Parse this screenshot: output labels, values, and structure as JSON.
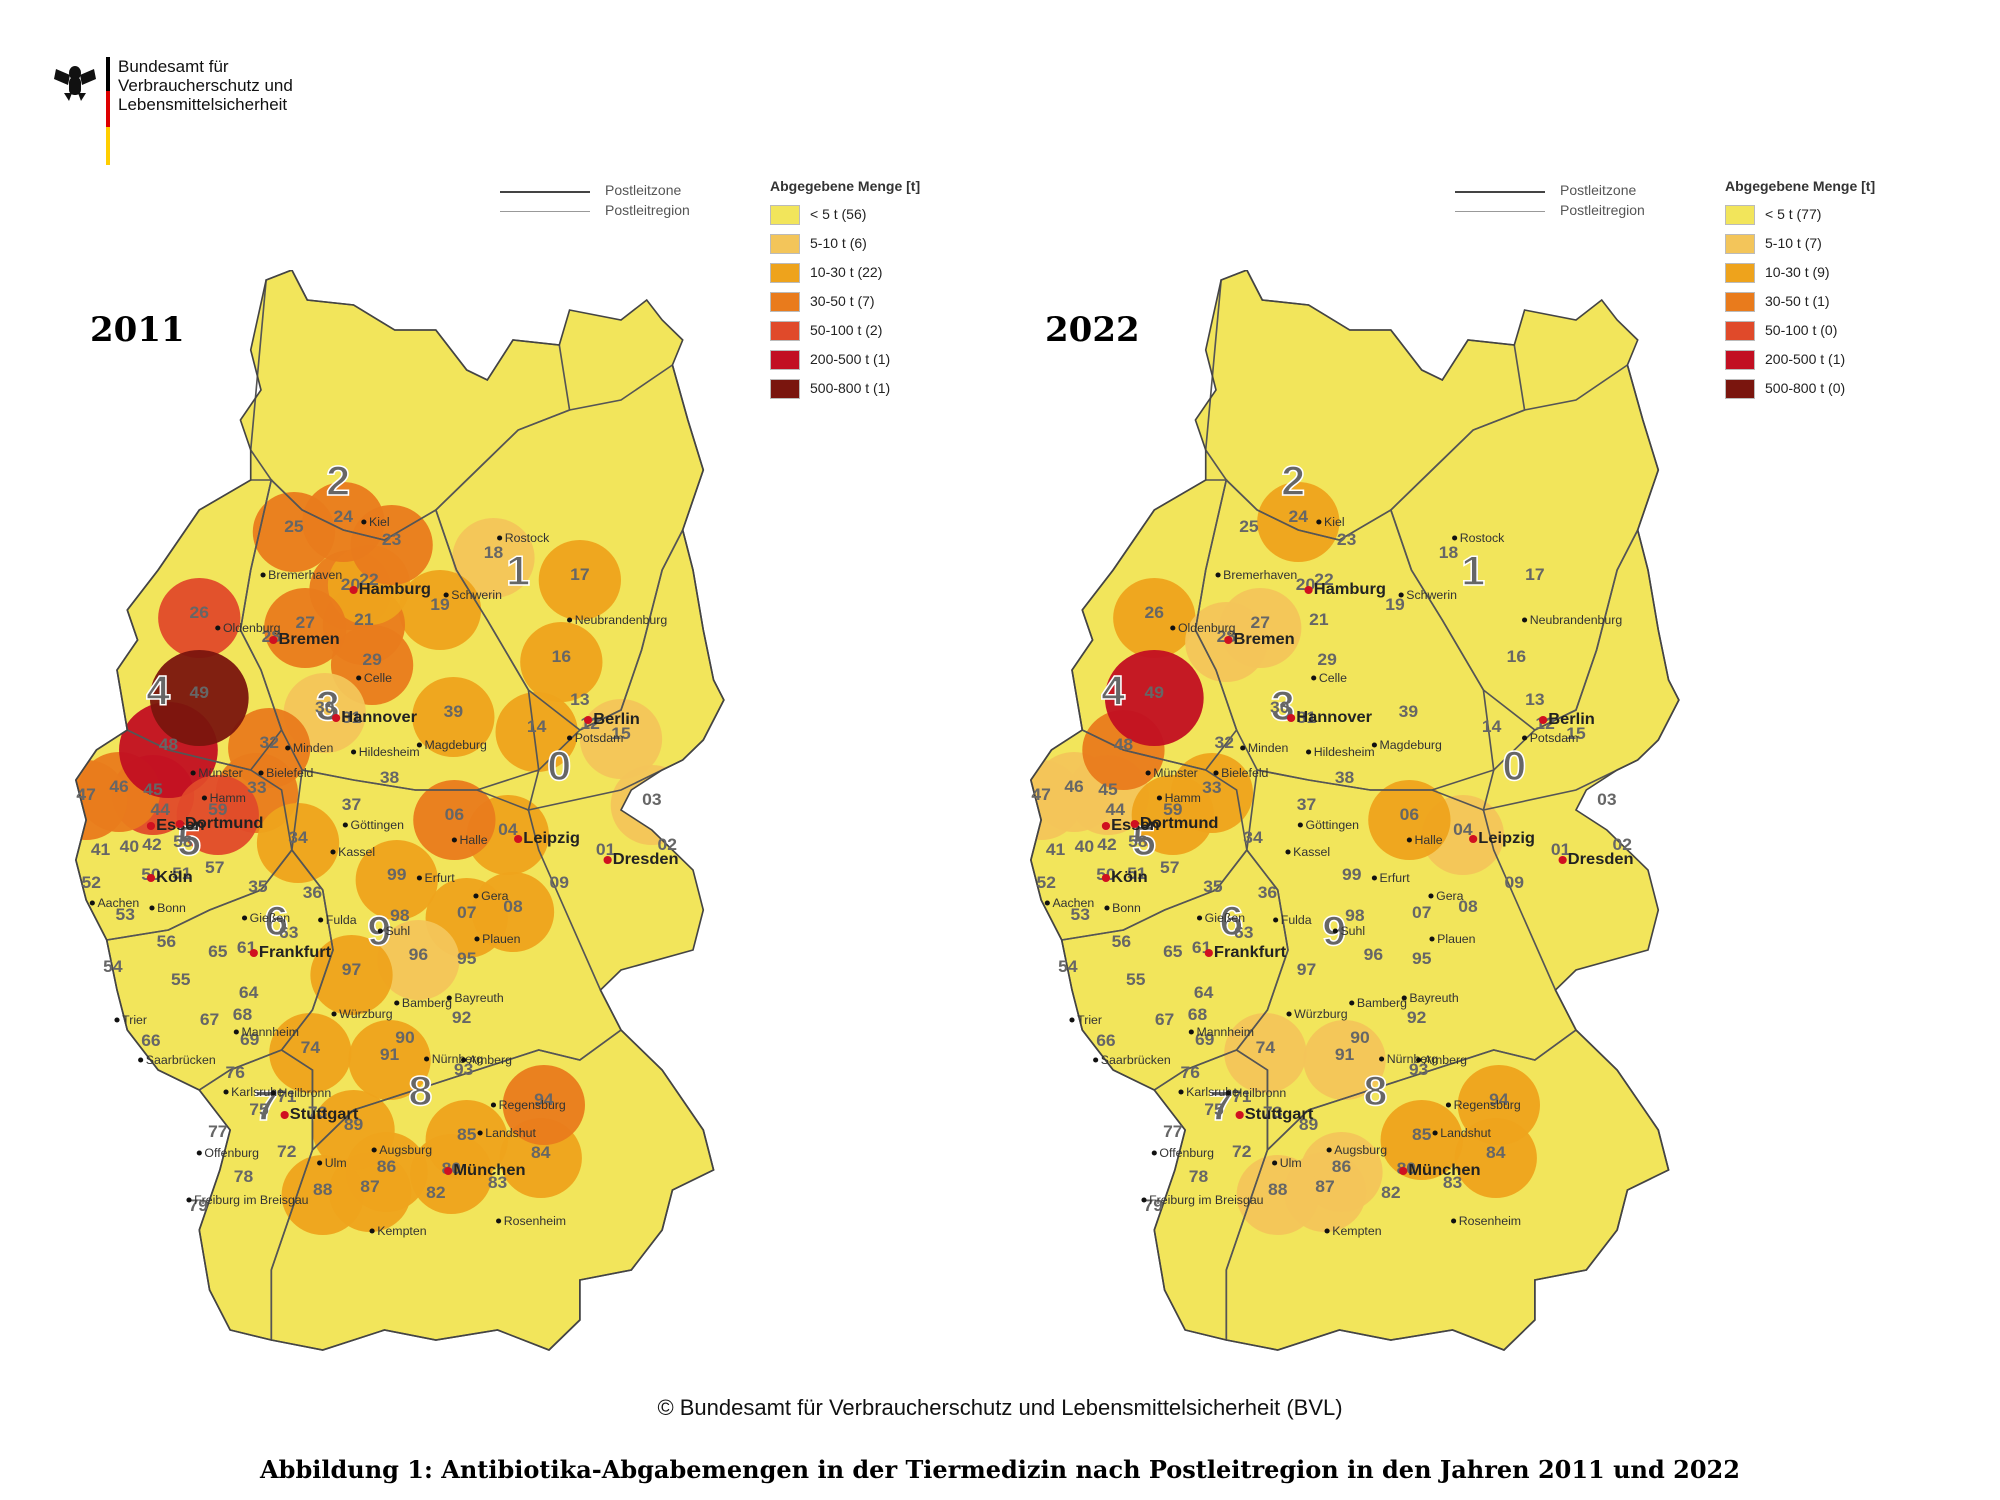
{
  "header": {
    "agency_lines": [
      "Bundesamt für",
      "Verbraucherschutz und",
      "Lebensmittelsicherheit"
    ]
  },
  "key": {
    "zone_label": "Postleitzone",
    "region_label": "Postleitregion"
  },
  "maps": [
    {
      "year": "2011",
      "legend_title": "Abgegebene Menge [t]",
      "legend": [
        {
          "label": "< 5 t (56)",
          "color": "#f2e55b"
        },
        {
          "label": "5-10 t (6)",
          "color": "#f3c55a"
        },
        {
          "label": "10-30 t (22)",
          "color": "#eea31c"
        },
        {
          "label": "30-50 t (7)",
          "color": "#e97b1c"
        },
        {
          "label": "50-100 t (2)",
          "color": "#e04a2a"
        },
        {
          "label": "200-500 t (1)",
          "color": "#c20f22"
        },
        {
          "label": "500-800 t (1)",
          "color": "#7a150e"
        }
      ]
    },
    {
      "year": "2022",
      "legend_title": "Abgegebene Menge [t]",
      "legend": [
        {
          "label": "< 5 t (77)",
          "color": "#f2e55b"
        },
        {
          "label": "5-10 t (7)",
          "color": "#f3c55a"
        },
        {
          "label": "10-30 t (9)",
          "color": "#eea31c"
        },
        {
          "label": "30-50 t (1)",
          "color": "#e97b1c"
        },
        {
          "label": "50-100 t (0)",
          "color": "#e04a2a"
        },
        {
          "label": "200-500 t (1)",
          "color": "#c20f22"
        },
        {
          "label": "500-800 t (0)",
          "color": "#7a150e"
        }
      ]
    }
  ],
  "zones": [
    "0",
    "1",
    "2",
    "3",
    "4",
    "5",
    "6",
    "7",
    "8",
    "9"
  ],
  "regions": {
    "r01": "01",
    "r02": "02",
    "r03": "03",
    "r04": "04",
    "r06": "06",
    "r07": "07",
    "r08": "08",
    "r09": "09",
    "r12": "12",
    "r13": "13",
    "r14": "14",
    "r15": "15",
    "r16": "16",
    "r17": "17",
    "r18": "18",
    "r19": "19",
    "r20": "20",
    "r21": "21",
    "r22": "22",
    "r23": "23",
    "r24": "24",
    "r25": "25",
    "r26": "26",
    "r27": "27",
    "r28": "28",
    "r29": "29",
    "r30": "30",
    "r31": "31",
    "r32": "32",
    "r33": "33",
    "r34": "34",
    "r37": "37",
    "r38": "38",
    "r39": "39",
    "r40": "40",
    "r41": "41",
    "r42": "42",
    "r44": "44",
    "r45": "45",
    "r46": "46",
    "r47": "47",
    "r48": "48",
    "r49": "49",
    "r50": "50",
    "r51": "51",
    "r52": "52",
    "r53": "53",
    "r54": "54",
    "r55": "55",
    "r56": "56",
    "r57": "57",
    "r58": "58",
    "r59": "59",
    "r61": "61",
    "r63": "63",
    "r64": "64",
    "r65": "65",
    "r66": "66",
    "r67": "67",
    "r68": "68",
    "r69": "69",
    "r71": "71",
    "r72": "72",
    "r73": "73",
    "r74": "74",
    "r75": "75",
    "r76": "76",
    "r77": "77",
    "r78": "78",
    "r79": "79",
    "r80": "80",
    "r82": "82",
    "r83": "83",
    "r84": "84",
    "r85": "85",
    "r86": "86",
    "r87": "87",
    "r88": "88",
    "r89": "89",
    "r90": "90",
    "r91": "91",
    "r92": "92",
    "r93": "93",
    "r94": "94",
    "r95": "95",
    "r96": "96",
    "r97": "97",
    "r98": "98",
    "r99": "99",
    "r35": "35",
    "r36": "36"
  },
  "cities": {
    "kiel": "Kiel",
    "rostock": "Rostock",
    "bremerhaven": "Bremerhaven",
    "hamburg": "Hamburg",
    "schwerin": "Schwerin",
    "neubrandenburg": "Neubrandenburg",
    "oldenburg": "Oldenburg",
    "bremen": "Bremen",
    "celle": "Celle",
    "berlin": "Berlin",
    "potsdam": "Potsdam",
    "hannover": "Hannover",
    "minden": "Minden",
    "magdeburg": "Magdeburg",
    "hildesheim": "Hildesheim",
    "muenster": "Münster",
    "bielefeld": "Bielefeld",
    "hamm": "Hamm",
    "goettingen": "Göttingen",
    "halle": "Halle",
    "essen": "Essen",
    "dortmund": "Dortmund",
    "leipzig": "Leipzig",
    "kassel": "Kassel",
    "dresden": "Dresden",
    "koeln": "Köln",
    "erfurt": "Erfurt",
    "gera": "Gera",
    "aachen": "Aachen",
    "bonn": "Bonn",
    "giessen": "Gießen",
    "fulda": "Fulda",
    "suhl": "Suhl",
    "plauen": "Plauen",
    "frankfurt": "Frankfurt",
    "bayreuth": "Bayreuth",
    "bamberg": "Bamberg",
    "wuerzburg": "Würzburg",
    "trier": "Trier",
    "mannheim": "Mannheim",
    "saarbruecken": "Saarbrücken",
    "nuernberg": "Nürnberg",
    "amberg": "Amberg",
    "karlsruhe": "Karlsruhe",
    "heilbronn": "Heilbronn",
    "regensburg": "Regensburg",
    "stuttgart": "Stuttgart",
    "landshut": "Landshut",
    "offenburg": "Offenburg",
    "augsburg": "Augsburg",
    "ulm": "Ulm",
    "muenchen": "München",
    "freiburg": "Freiburg im Breisgau",
    "rosenheim": "Rosenheim",
    "kempten": "Kempten"
  },
  "footer": {
    "credit": "© Bundesamt für Verbraucherschutz und Lebensmittelsicherheit (BVL)",
    "caption": "Abbildung 1: Antibiotika-Abgabemengen in der Tiermedizin nach Postleitregion in den Jahren 2011 und 2022"
  }
}
